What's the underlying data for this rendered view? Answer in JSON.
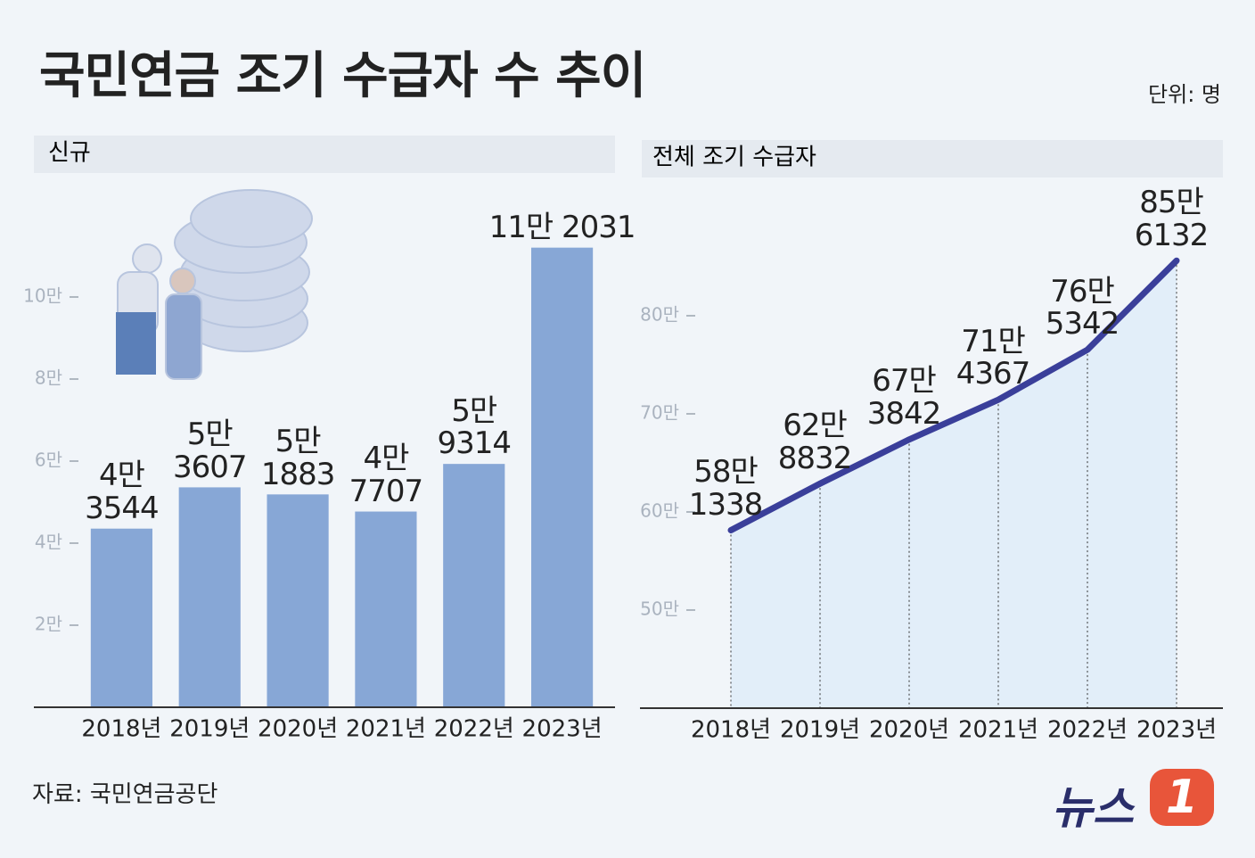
{
  "title": "국민연금 조기 수급자 수 추이",
  "unit": "단위: 명",
  "source": "자료: 국민연금공단",
  "logo": {
    "text": "뉴스",
    "number": "1"
  },
  "chart_data": [
    {
      "type": "bar",
      "title": "신규",
      "categories": [
        "2018년",
        "2019년",
        "2020년",
        "2021년",
        "2022년",
        "2023년"
      ],
      "values": [
        43544,
        53607,
        51883,
        47707,
        59314,
        112031
      ],
      "value_labels": [
        "4만\n3544",
        "5만\n3607",
        "5만\n1883",
        "4만\n7707",
        "5만\n9314",
        "11만 2031"
      ],
      "color": "#87a7d6",
      "ylim": [
        0,
        120000
      ],
      "yticks": [
        {
          "value": 20000,
          "label": "2만"
        },
        {
          "value": 40000,
          "label": "4만"
        },
        {
          "value": 60000,
          "label": "6만"
        },
        {
          "value": 80000,
          "label": "8만"
        },
        {
          "value": 100000,
          "label": "10만"
        }
      ]
    },
    {
      "type": "line",
      "title": "전체 조기 수급자",
      "categories": [
        "2018년",
        "2019년",
        "2020년",
        "2021년",
        "2022년",
        "2023년"
      ],
      "values": [
        581338,
        628832,
        673842,
        714367,
        765342,
        856132
      ],
      "value_labels": [
        "58만\n1338",
        "62만\n8832",
        "67만\n3842",
        "71만\n4367",
        "76만\n5342",
        "85만\n6132"
      ],
      "color": "#3a3f9a",
      "ylim": [
        400000,
        900000
      ],
      "yticks": [
        {
          "value": 500000,
          "label": "50만"
        },
        {
          "value": 600000,
          "label": "60만"
        },
        {
          "value": 700000,
          "label": "70만"
        },
        {
          "value": 800000,
          "label": "80만"
        }
      ]
    }
  ]
}
